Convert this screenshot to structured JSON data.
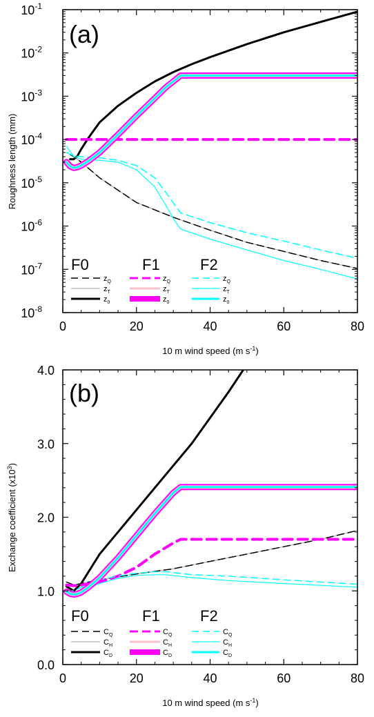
{
  "colors": {
    "f0": "#000000",
    "f1": "#ff00ff",
    "f1_light": "#ffc0cb",
    "f2": "#00ffff",
    "f0_gray": "#bbbbbb"
  },
  "chart_data": [
    {
      "type": "line",
      "panel_label": "(a)",
      "xlabel": "10 m wind speed (m s",
      "xlabel_sup": "-1",
      "xlabel_end": ")",
      "ylabel": "Roughness length (mm)",
      "xlim": [
        0,
        80
      ],
      "ylim": [
        1e-08,
        0.1
      ],
      "yscale": "log",
      "xticks": [
        "0",
        "20",
        "40",
        "60",
        "80"
      ],
      "yticks": [
        {
          "base": "10",
          "exp": "-8"
        },
        {
          "base": "10",
          "exp": "-7"
        },
        {
          "base": "10",
          "exp": "-6"
        },
        {
          "base": "10",
          "exp": "-5"
        },
        {
          "base": "10",
          "exp": "-4"
        },
        {
          "base": "10",
          "exp": "-3"
        },
        {
          "base": "10",
          "exp": "-2"
        },
        {
          "base": "10",
          "exp": "-1"
        }
      ],
      "legend": {
        "placement": "bottom-left",
        "groups": [
          {
            "title": "F0",
            "entries": [
              {
                "sym": "z",
                "sub": "Q"
              },
              {
                "sym": "z",
                "sub": "T"
              },
              {
                "sym": "z",
                "sub": "0"
              }
            ]
          },
          {
            "title": "F1",
            "entries": [
              {
                "sym": "z",
                "sub": "Q"
              },
              {
                "sym": "z",
                "sub": "T"
              },
              {
                "sym": "z",
                "sub": "0"
              }
            ]
          },
          {
            "title": "F2",
            "entries": [
              {
                "sym": "z",
                "sub": "Q"
              },
              {
                "sym": "z",
                "sub": "T"
              },
              {
                "sym": "z",
                "sub": "0"
              }
            ]
          }
        ]
      },
      "series": [
        {
          "group": "F0",
          "var": "z0",
          "style": "f0_solid_thick",
          "x": [
            2,
            3,
            4,
            5,
            7,
            10,
            15,
            20,
            25,
            30,
            35,
            40,
            50,
            60,
            70,
            80
          ],
          "y": [
            3.5e-05,
            3.5e-05,
            4.2e-05,
            6e-05,
            0.00011,
            0.00025,
            0.0006,
            0.0012,
            0.0022,
            0.0036,
            0.0055,
            0.008,
            0.016,
            0.03,
            0.052,
            0.09
          ]
        },
        {
          "group": "F0",
          "var": "zQ",
          "style": "f0_dashed",
          "x": [
            2,
            3,
            5,
            10,
            20,
            30,
            40,
            50,
            60,
            70,
            80
          ],
          "y": [
            4.5e-05,
            4e-05,
            3e-05,
            1.3e-05,
            3.5e-06,
            1.6e-06,
            8e-07,
            4.2e-07,
            2.6e-07,
            1.6e-07,
            1.05e-07
          ]
        },
        {
          "group": "F1",
          "var": "zQ",
          "style": "f1_dashed",
          "x": [
            1,
            80
          ],
          "y": [
            0.0001,
            0.0001
          ]
        },
        {
          "group": "F2",
          "var": "zQ",
          "style": "f2_dashed",
          "x": [
            1,
            3,
            5,
            10,
            15,
            20,
            25,
            28,
            32,
            40,
            50,
            60,
            70,
            80
          ],
          "y": [
            5e-05,
            4.2e-05,
            4e-05,
            3.8e-05,
            3.3e-05,
            2.5e-05,
            1.3e-05,
            6e-06,
            2e-06,
            1.2e-06,
            7e-07,
            4.5e-07,
            2.8e-07,
            1.8e-07
          ]
        },
        {
          "group": "F2",
          "var": "zT",
          "style": "f2_solid_thin",
          "x": [
            1,
            3,
            5,
            10,
            15,
            20,
            25,
            28,
            30,
            32,
            40,
            50,
            60,
            70,
            80
          ],
          "y": [
            7e-05,
            4e-05,
            3.5e-05,
            3.3e-05,
            3e-05,
            2e-05,
            8e-06,
            3e-06,
            1.5e-06,
            8.5e-07,
            5e-07,
            2.8e-07,
            1.6e-07,
            1e-07,
            6e-08
          ]
        },
        {
          "group": "F1/F2",
          "var": "z0",
          "style": "z0_thick",
          "x": [
            1,
            2,
            3,
            4,
            5,
            7,
            10,
            15,
            20,
            25,
            28,
            30,
            32,
            35,
            40,
            50,
            60,
            70,
            80
          ],
          "y": [
            3e-05,
            2.4e-05,
            2.2e-05,
            2.3e-05,
            2.5e-05,
            3.2e-05,
            5e-05,
            0.00013,
            0.00035,
            0.0009,
            0.0016,
            0.0022,
            0.003,
            0.003,
            0.003,
            0.003,
            0.003,
            0.003,
            0.003
          ]
        }
      ]
    },
    {
      "type": "line",
      "panel_label": "(b)",
      "xlabel": "10 m wind speed (m s",
      "xlabel_sup": "-1",
      "xlabel_end": ")",
      "ylabel": "Exchange coefficient (x10",
      "ylabel_sup": "3",
      "ylabel_end": ")",
      "xlim": [
        0,
        80
      ],
      "ylim": [
        0,
        4
      ],
      "yscale": "linear",
      "xticks": [
        "0",
        "20",
        "40",
        "60",
        "80"
      ],
      "yticks": [
        "0.0",
        "1.0",
        "2.0",
        "3.0",
        "4.0"
      ],
      "legend": {
        "placement": "bottom-left",
        "groups": [
          {
            "title": "F0",
            "entries": [
              {
                "sym": "C",
                "sub": "Q"
              },
              {
                "sym": "C",
                "sub": "H"
              },
              {
                "sym": "C",
                "sub": "D"
              }
            ]
          },
          {
            "title": "F1",
            "entries": [
              {
                "sym": "C",
                "sub": "Q"
              },
              {
                "sym": "C",
                "sub": "H"
              },
              {
                "sym": "C",
                "sub": "D"
              }
            ]
          },
          {
            "title": "F2",
            "entries": [
              {
                "sym": "C",
                "sub": "Q"
              },
              {
                "sym": "C",
                "sub": "H"
              },
              {
                "sym": "C",
                "sub": "D"
              }
            ]
          }
        ]
      },
      "series": [
        {
          "group": "F0",
          "var": "CD",
          "style": "f0_solid_thick",
          "x": [
            1,
            3,
            5,
            10,
            15,
            20,
            25,
            30,
            35,
            40,
            45,
            49
          ],
          "y": [
            1.06,
            1.0,
            1.1,
            1.5,
            1.8,
            2.1,
            2.4,
            2.7,
            3.0,
            3.35,
            3.7,
            4.0
          ]
        },
        {
          "group": "F0",
          "var": "CQ",
          "style": "f0_dashed",
          "x": [
            1,
            3,
            5,
            10,
            20,
            30,
            40,
            50,
            60,
            70,
            80
          ],
          "y": [
            1.12,
            1.08,
            1.1,
            1.15,
            1.23,
            1.3,
            1.4,
            1.5,
            1.6,
            1.7,
            1.82
          ]
        },
        {
          "group": "F1",
          "var": "CQ",
          "style": "f1_dashed",
          "x": [
            1,
            3,
            5,
            10,
            15,
            20,
            25,
            30,
            32,
            40,
            60,
            80
          ],
          "y": [
            1.08,
            1.07,
            1.08,
            1.12,
            1.2,
            1.32,
            1.5,
            1.65,
            1.7,
            1.7,
            1.7,
            1.7
          ]
        },
        {
          "group": "F2",
          "var": "CQ",
          "style": "f2_dashed",
          "x": [
            1,
            3,
            5,
            10,
            15,
            20,
            25,
            28,
            35,
            45,
            60,
            80
          ],
          "y": [
            1.0,
            1.0,
            1.05,
            1.15,
            1.2,
            1.24,
            1.26,
            1.26,
            1.22,
            1.2,
            1.15,
            1.09
          ]
        },
        {
          "group": "F2",
          "var": "CH",
          "style": "f2_solid_thin",
          "x": [
            1,
            3,
            5,
            10,
            15,
            20,
            25,
            28,
            35,
            45,
            60,
            80
          ],
          "y": [
            0.97,
            0.96,
            1.0,
            1.1,
            1.17,
            1.21,
            1.22,
            1.22,
            1.18,
            1.14,
            1.1,
            1.05
          ]
        },
        {
          "group": "F1/F2",
          "var": "CD",
          "style": "z0_thick",
          "x": [
            1,
            2,
            3,
            4,
            5,
            7,
            10,
            15,
            20,
            25,
            30,
            32,
            35,
            40,
            50,
            60,
            70,
            80
          ],
          "y": [
            0.99,
            0.96,
            0.95,
            0.96,
            0.98,
            1.05,
            1.18,
            1.45,
            1.75,
            2.05,
            2.33,
            2.41,
            2.41,
            2.41,
            2.41,
            2.41,
            2.41,
            2.41
          ]
        }
      ]
    }
  ]
}
